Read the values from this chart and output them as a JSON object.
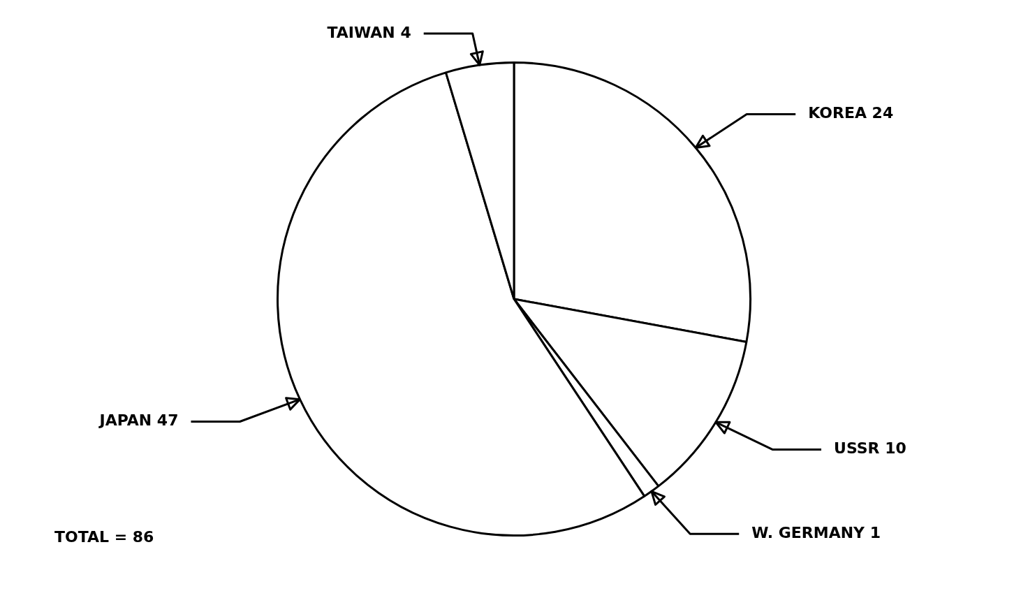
{
  "chart_data": {
    "type": "pie",
    "categories": [
      "KOREA 24",
      "USSR 10",
      "W. GERMANY 1",
      "JAPAN 47",
      "TAIWAN 4"
    ],
    "values": [
      24,
      10,
      1,
      47,
      4
    ],
    "colors": [
      "#ffffff",
      "#ffffff",
      "#ffffff",
      "#ffffff",
      "#ffffff"
    ],
    "legend": false,
    "annotations": [
      "TOTAL = 86"
    ]
  }
}
